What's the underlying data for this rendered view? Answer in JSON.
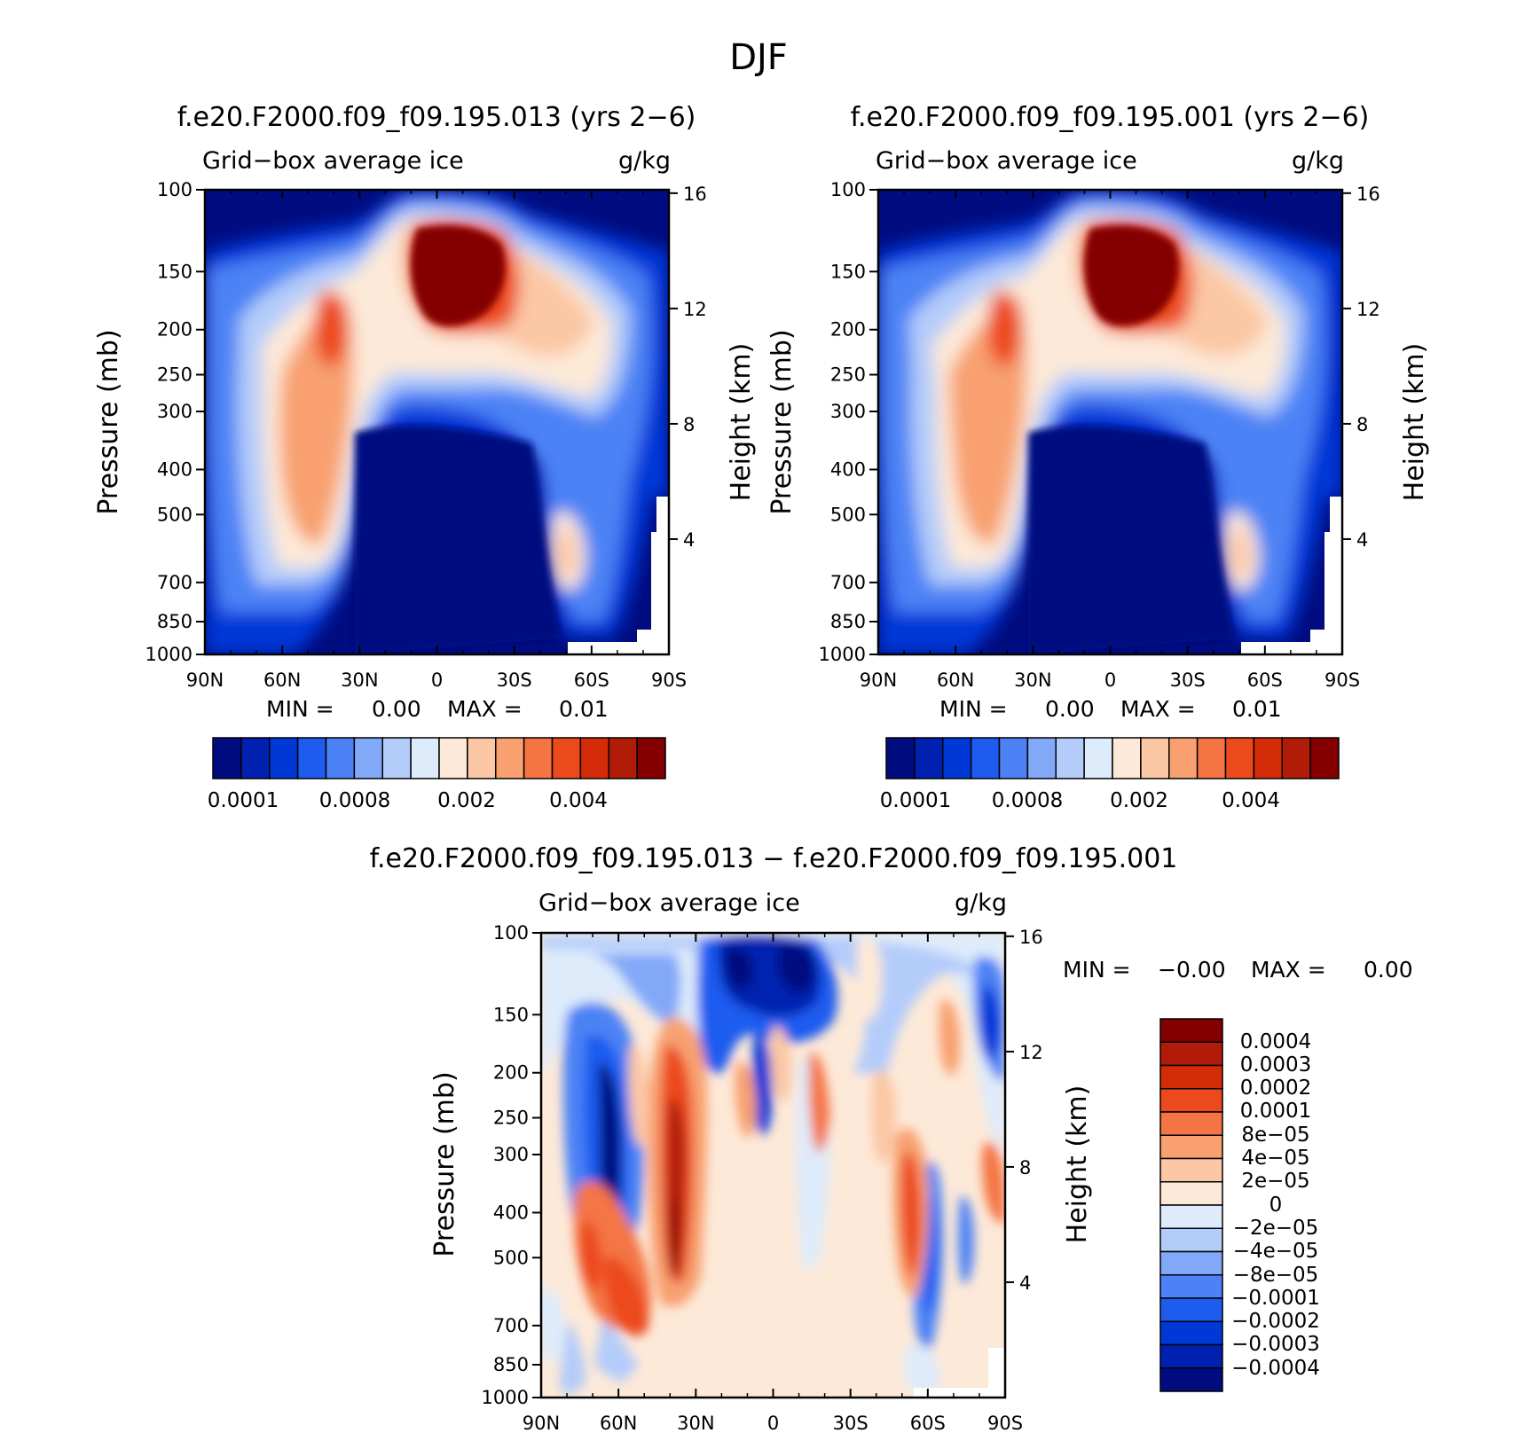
{
  "figure": {
    "title": "DJF"
  },
  "panels": [
    {
      "id": "panel-013",
      "title": "f.e20.F2000.f09_f09.195.013 (yrs 2−6)",
      "left_label": "Grid−box average ice",
      "right_label": "g/kg",
      "y_label": "Pressure (mb)",
      "y2_label": "Height (km)",
      "min_label": "MIN =",
      "min_value": "0.00",
      "max_label": "MAX =",
      "max_value": "0.01",
      "colorbar_ticks": [
        "0.0001",
        "0.0008",
        "0.002",
        "0.004"
      ]
    },
    {
      "id": "panel-001",
      "title": "f.e20.F2000.f09_f09.195.001 (yrs 2−6)",
      "left_label": "Grid−box average ice",
      "right_label": "g/kg",
      "y_label": "Pressure (mb)",
      "y2_label": "Height (km)",
      "min_label": "MIN =",
      "min_value": "0.00",
      "max_label": "MAX =",
      "max_value": "0.01",
      "colorbar_ticks": [
        "0.0001",
        "0.0008",
        "0.002",
        "0.004"
      ]
    },
    {
      "id": "panel-diff",
      "title": "f.e20.F2000.f09_f09.195.013 − f.e20.F2000.f09_f09.195.001",
      "left_label": "Grid−box average ice",
      "right_label": "g/kg",
      "y_label": "Pressure (mb)",
      "y2_label": "Height (km)",
      "min_label": "MIN =",
      "min_value": "−0.00",
      "max_label": "MAX =",
      "max_value": "0.00",
      "colorbar_ticks": [
        "0.0004",
        "0.0003",
        "0.0002",
        "0.0001",
        "8e−05",
        "4e−05",
        "2e−05",
        "0",
        "−2e−05",
        "−4e−05",
        "−8e−05",
        "−0.0001",
        "−0.0002",
        "−0.0003",
        "−0.0004"
      ]
    }
  ],
  "axes": {
    "x_ticks": [
      "90N",
      "60N",
      "30N",
      "0",
      "30S",
      "60S",
      "90S"
    ],
    "y_ticks": [
      "100",
      "150",
      "200",
      "250",
      "300",
      "400",
      "500",
      "700",
      "850",
      "1000"
    ],
    "y2_ticks": [
      "16",
      "12",
      "8",
      "4"
    ]
  },
  "colors": {
    "seq": [
      "#000c80",
      "#0020b0",
      "#0038d8",
      "#1e5cf0",
      "#4c82f5",
      "#82a8f8",
      "#b4ccfa",
      "#deebfb",
      "#fde9d8",
      "#fbc7a4",
      "#f8a070",
      "#f47444",
      "#ec4a1c",
      "#d42c08",
      "#b01c08",
      "#840000"
    ],
    "diff": [
      "#000c80",
      "#0020b0",
      "#0038d8",
      "#1e5cf0",
      "#4c82f5",
      "#82a8f8",
      "#b4ccfa",
      "#deebfb",
      "#fde9d8",
      "#fbc7a4",
      "#f8a070",
      "#f47444",
      "#ec4a1c",
      "#d42c08",
      "#b01c08",
      "#840000"
    ]
  },
  "chart_data": [
    {
      "type": "heatmap",
      "title": "f.e20.F2000.f09_f09.195.013 (yrs 2−6)",
      "xlabel": "",
      "ylabel": "Pressure (mb)",
      "y2label": "Height (km)",
      "units": "g/kg",
      "x": [
        "90N",
        "60N",
        "30N",
        "0",
        "30S",
        "60S",
        "90S"
      ],
      "y": [
        100,
        150,
        200,
        250,
        300,
        400,
        500,
        700,
        850,
        1000
      ],
      "levels": [
        0.0001,
        0.0002,
        0.0004,
        0.0006,
        0.0008,
        0.001,
        0.0015,
        0.002,
        0.0025,
        0.003,
        0.0035,
        0.004,
        0.0045,
        0.005,
        0.006
      ],
      "features": [
        {
          "lat": 10,
          "p": 250,
          "value": 0.006
        },
        {
          "lat": -25,
          "p": 350,
          "value": 0.0025
        },
        {
          "lat": 42,
          "p": 390,
          "value": 0.0045
        },
        {
          "lat": 55,
          "p": 650,
          "value": 0.0025
        },
        {
          "lat": -62,
          "p": 790,
          "value": 0.002
        },
        {
          "lat": 0,
          "p": 800,
          "value": 0.0001
        }
      ],
      "min": 0.0,
      "max": 0.01
    },
    {
      "type": "heatmap",
      "title": "f.e20.F2000.f09_f09.195.001 (yrs 2−6)",
      "xlabel": "",
      "ylabel": "Pressure (mb)",
      "y2label": "Height (km)",
      "units": "g/kg",
      "x": [
        "90N",
        "60N",
        "30N",
        "0",
        "30S",
        "60S",
        "90S"
      ],
      "y": [
        100,
        150,
        200,
        250,
        300,
        400,
        500,
        700,
        850,
        1000
      ],
      "levels": [
        0.0001,
        0.0002,
        0.0004,
        0.0006,
        0.0008,
        0.001,
        0.0015,
        0.002,
        0.0025,
        0.003,
        0.0035,
        0.004,
        0.0045,
        0.005,
        0.006
      ],
      "features": [
        {
          "lat": 10,
          "p": 250,
          "value": 0.006
        },
        {
          "lat": -25,
          "p": 350,
          "value": 0.0025
        },
        {
          "lat": 42,
          "p": 390,
          "value": 0.0045
        },
        {
          "lat": 58,
          "p": 650,
          "value": 0.0025
        },
        {
          "lat": -62,
          "p": 790,
          "value": 0.002
        },
        {
          "lat": 0,
          "p": 800,
          "value": 0.0001
        }
      ],
      "min": 0.0,
      "max": 0.01
    },
    {
      "type": "heatmap",
      "title": "f.e20.F2000.f09_f09.195.013 − f.e20.F2000.f09_f09.195.001",
      "xlabel": "",
      "ylabel": "Pressure (mb)",
      "y2label": "Height (km)",
      "units": "g/kg",
      "x": [
        "90N",
        "60N",
        "30N",
        "0",
        "30S",
        "60S",
        "90S"
      ],
      "y": [
        100,
        150,
        200,
        250,
        300,
        400,
        500,
        700,
        850,
        1000
      ],
      "levels": [
        -0.0004,
        -0.0003,
        -0.0002,
        -0.0001,
        -8e-05,
        -4e-05,
        -2e-05,
        0,
        2e-05,
        4e-05,
        8e-05,
        0.0001,
        0.0002,
        0.0003,
        0.0004
      ],
      "features": [
        {
          "lat": 8,
          "p": 180,
          "value": -0.0004
        },
        {
          "lat": -12,
          "p": 180,
          "value": -0.0004
        },
        {
          "lat": 62,
          "p": 500,
          "value": -0.0004
        },
        {
          "lat": 35,
          "p": 750,
          "value": 0.0004
        },
        {
          "lat": 55,
          "p": 800,
          "value": 0.0003
        },
        {
          "lat": -50,
          "p": 640,
          "value": 0.0002
        },
        {
          "lat": -58,
          "p": 760,
          "value": -0.0002
        }
      ],
      "min": -0.0,
      "max": 0.0
    }
  ]
}
